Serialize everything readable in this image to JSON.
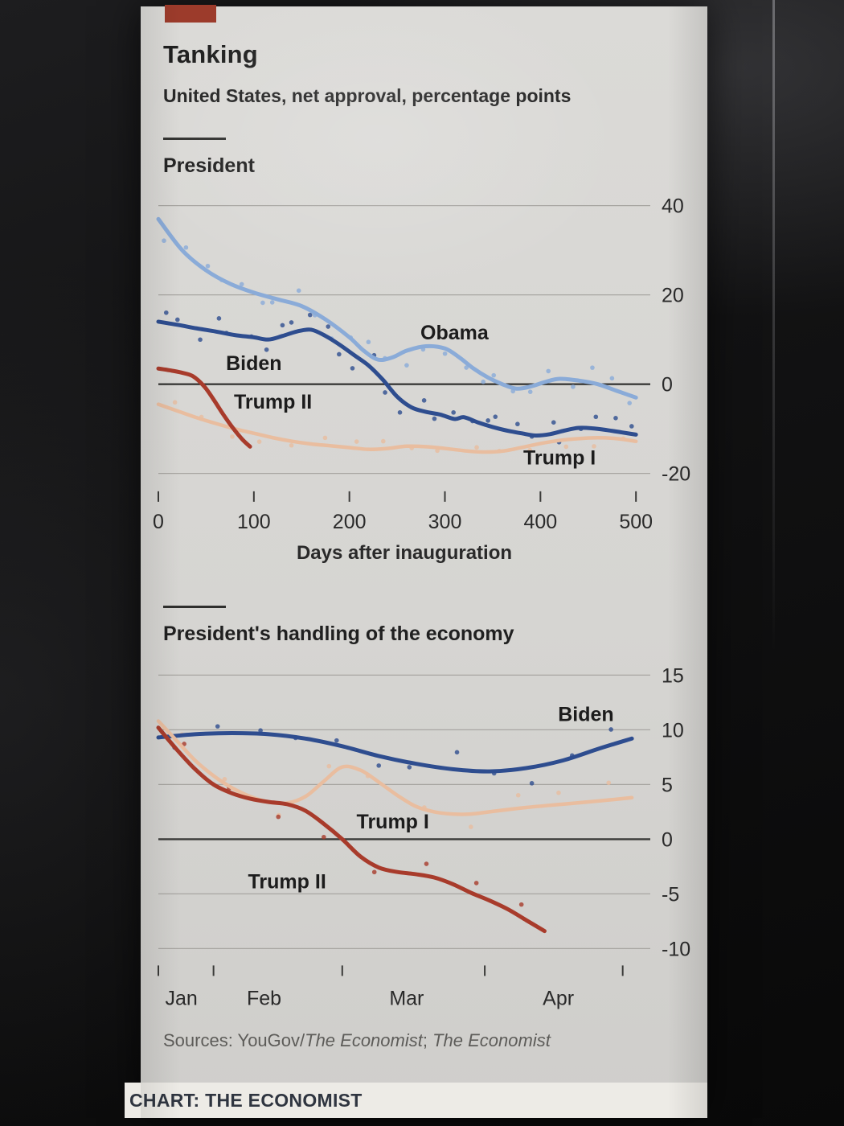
{
  "header": {
    "title": "Tanking",
    "subtitle": "United States, net approval, percentage points"
  },
  "sources": {
    "prefix": "Sources: YouGov/",
    "italic1": "The Economist",
    "separator": "; ",
    "italic2": "The Economist"
  },
  "footer": {
    "credit": "CHART: THE ECONOMIST"
  },
  "colors": {
    "obama": "#8aabd8",
    "biden": "#2e4d8f",
    "trump1": "#e9bd9f",
    "trump2": "#a83b2b",
    "grid": "#a8a6a2",
    "zero": "#3a3a38",
    "text": "#2a2a2a",
    "annotation": "#1c1c1c",
    "red_tab": "#9c3b2b"
  },
  "chart_data": [
    {
      "type": "line",
      "title": "President",
      "xlabel": "Days after inauguration",
      "x_range": [
        0,
        515
      ],
      "y_range": [
        -24,
        43
      ],
      "y_gridlines": [
        40,
        20,
        0,
        -20
      ],
      "x_ticks": [
        0,
        100,
        200,
        300,
        400,
        500
      ],
      "legend_position": "inline-labels",
      "grid": true,
      "series": [
        {
          "name": "Obama",
          "color_key": "obama",
          "width": 5,
          "scatter": {
            "n": 26,
            "amp": 3.4
          },
          "points": [
            [
              0,
              37
            ],
            [
              25,
              30
            ],
            [
              50,
              25.5
            ],
            [
              75,
              22.5
            ],
            [
              100,
              20.5
            ],
            [
              125,
              19
            ],
            [
              150,
              17.5
            ],
            [
              175,
              14.5
            ],
            [
              200,
              10.5
            ],
            [
              215,
              7.5
            ],
            [
              230,
              5.5
            ],
            [
              245,
              6
            ],
            [
              260,
              7.5
            ],
            [
              280,
              8.5
            ],
            [
              300,
              8
            ],
            [
              315,
              6
            ],
            [
              330,
              3.5
            ],
            [
              345,
              1.5
            ],
            [
              360,
              0
            ],
            [
              375,
              -1
            ],
            [
              390,
              -0.5
            ],
            [
              405,
              0.5
            ],
            [
              420,
              1.2
            ],
            [
              440,
              0.8
            ],
            [
              460,
              0
            ],
            [
              480,
              -1.5
            ],
            [
              500,
              -3
            ]
          ]
        },
        {
          "name": "Biden",
          "color_key": "biden",
          "width": 5,
          "scatter": {
            "n": 30,
            "amp": 3.4
          },
          "points": [
            [
              0,
              14
            ],
            [
              20,
              13.3
            ],
            [
              40,
              12.5
            ],
            [
              60,
              11.8
            ],
            [
              80,
              11
            ],
            [
              100,
              10.5
            ],
            [
              115,
              10
            ],
            [
              130,
              10.8
            ],
            [
              145,
              11.8
            ],
            [
              160,
              12.2
            ],
            [
              175,
              10.8
            ],
            [
              190,
              8.8
            ],
            [
              205,
              6.5
            ],
            [
              220,
              4.2
            ],
            [
              235,
              1
            ],
            [
              250,
              -2.8
            ],
            [
              265,
              -5.2
            ],
            [
              280,
              -6.2
            ],
            [
              295,
              -6.8
            ],
            [
              310,
              -7.8
            ],
            [
              320,
              -7.4
            ],
            [
              335,
              -8.6
            ],
            [
              350,
              -9.6
            ],
            [
              365,
              -10.4
            ],
            [
              380,
              -11
            ],
            [
              395,
              -11.5
            ],
            [
              410,
              -11.2
            ],
            [
              425,
              -10.4
            ],
            [
              440,
              -9.8
            ],
            [
              455,
              -9.9
            ],
            [
              470,
              -10.3
            ],
            [
              485,
              -10.8
            ],
            [
              500,
              -11.3
            ]
          ]
        },
        {
          "name": "Trump I",
          "color_key": "trump1",
          "width": 4.5,
          "scatter": {
            "n": 16,
            "amp": 2.4
          },
          "points": [
            [
              0,
              -4.5
            ],
            [
              20,
              -6
            ],
            [
              40,
              -7.5
            ],
            [
              60,
              -8.8
            ],
            [
              80,
              -10
            ],
            [
              100,
              -11
            ],
            [
              120,
              -12
            ],
            [
              140,
              -12.8
            ],
            [
              160,
              -13.4
            ],
            [
              180,
              -13.8
            ],
            [
              200,
              -14.2
            ],
            [
              220,
              -14.6
            ],
            [
              240,
              -14.4
            ],
            [
              260,
              -13.9
            ],
            [
              280,
              -14
            ],
            [
              300,
              -14.4
            ],
            [
              320,
              -14.9
            ],
            [
              340,
              -15.2
            ],
            [
              360,
              -15
            ],
            [
              380,
              -14.2
            ],
            [
              400,
              -13.3
            ],
            [
              420,
              -12.6
            ],
            [
              440,
              -12.2
            ],
            [
              460,
              -12
            ],
            [
              480,
              -12.2
            ],
            [
              500,
              -12.8
            ]
          ]
        },
        {
          "name": "Trump II",
          "color_key": "trump2",
          "width": 5,
          "scatter": null,
          "points": [
            [
              0,
              3.5
            ],
            [
              12,
              3.1
            ],
            [
              24,
              2.6
            ],
            [
              36,
              1.8
            ],
            [
              48,
              -0.5
            ],
            [
              58,
              -3.5
            ],
            [
              68,
              -6.8
            ],
            [
              78,
              -9.8
            ],
            [
              88,
              -12.4
            ],
            [
              96,
              -14
            ]
          ]
        }
      ],
      "annotations": [
        {
          "text": "Obama",
          "x": 310,
          "y": 10
        },
        {
          "text": "Biden",
          "x": 100,
          "y": 3.2
        },
        {
          "text": "Trump II",
          "x": 120,
          "y": -5.5
        },
        {
          "text": "Trump I",
          "x": 420,
          "y": -18
        }
      ]
    },
    {
      "type": "line",
      "title": "President's handling of the economy",
      "xlabel": "",
      "x_range": [
        0,
        107
      ],
      "y_range": [
        -12.5,
        16.5
      ],
      "y_gridlines": [
        15,
        10,
        5,
        0,
        -5,
        -10
      ],
      "x_ticks": [
        0,
        12,
        40,
        71,
        101
      ],
      "x_labels": [
        {
          "text": "Jan",
          "x": 5
        },
        {
          "text": "Feb",
          "x": 23
        },
        {
          "text": "Mar",
          "x": 54
        },
        {
          "text": "Apr",
          "x": 87
        }
      ],
      "legend_position": "inline-labels",
      "grid": true,
      "series": [
        {
          "name": "Biden",
          "color_key": "biden",
          "width": 5,
          "scatter": {
            "n": 12,
            "amp": 1.7
          },
          "points": [
            [
              0,
              9.3
            ],
            [
              8,
              9.6
            ],
            [
              16,
              9.7
            ],
            [
              24,
              9.6
            ],
            [
              32,
              9.2
            ],
            [
              40,
              8.5
            ],
            [
              48,
              7.6
            ],
            [
              56,
              6.9
            ],
            [
              64,
              6.4
            ],
            [
              72,
              6.2
            ],
            [
              80,
              6.5
            ],
            [
              88,
              7.2
            ],
            [
              96,
              8.3
            ],
            [
              103,
              9.2
            ]
          ]
        },
        {
          "name": "Trump I",
          "color_key": "trump1",
          "width": 4.5,
          "scatter": {
            "n": 10,
            "amp": 1.6
          },
          "points": [
            [
              0,
              10.8
            ],
            [
              4,
              9
            ],
            [
              8,
              7.2
            ],
            [
              12,
              5.8
            ],
            [
              16,
              4.7
            ],
            [
              20,
              3.9
            ],
            [
              24,
              3.4
            ],
            [
              28,
              3.3
            ],
            [
              32,
              3.9
            ],
            [
              36,
              5.3
            ],
            [
              40,
              6.6
            ],
            [
              44,
              6.3
            ],
            [
              48,
              5.2
            ],
            [
              52,
              4
            ],
            [
              56,
              3
            ],
            [
              60,
              2.5
            ],
            [
              64,
              2.3
            ],
            [
              68,
              2.3
            ],
            [
              72,
              2.5
            ],
            [
              80,
              2.9
            ],
            [
              88,
              3.2
            ],
            [
              96,
              3.5
            ],
            [
              103,
              3.8
            ]
          ]
        },
        {
          "name": "Trump II",
          "color_key": "trump2",
          "width": 5,
          "scatter": {
            "n": 8,
            "amp": 1.6
          },
          "points": [
            [
              0,
              10.2
            ],
            [
              4,
              8.2
            ],
            [
              8,
              6.4
            ],
            [
              12,
              5
            ],
            [
              16,
              4.2
            ],
            [
              20,
              3.7
            ],
            [
              24,
              3.4
            ],
            [
              28,
              3.2
            ],
            [
              32,
              2.6
            ],
            [
              36,
              1.4
            ],
            [
              40,
              0
            ],
            [
              44,
              -1.6
            ],
            [
              48,
              -2.6
            ],
            [
              52,
              -3
            ],
            [
              56,
              -3.2
            ],
            [
              60,
              -3.5
            ],
            [
              64,
              -4.1
            ],
            [
              68,
              -4.9
            ],
            [
              72,
              -5.6
            ],
            [
              76,
              -6.4
            ],
            [
              80,
              -7.4
            ],
            [
              84,
              -8.4
            ]
          ]
        }
      ],
      "annotations": [
        {
          "text": "Biden",
          "x": 93,
          "y": 10.8
        },
        {
          "text": "Trump I",
          "x": 51,
          "y": 1.0
        },
        {
          "text": "Trump II",
          "x": 28,
          "y": -4.5
        }
      ]
    }
  ]
}
